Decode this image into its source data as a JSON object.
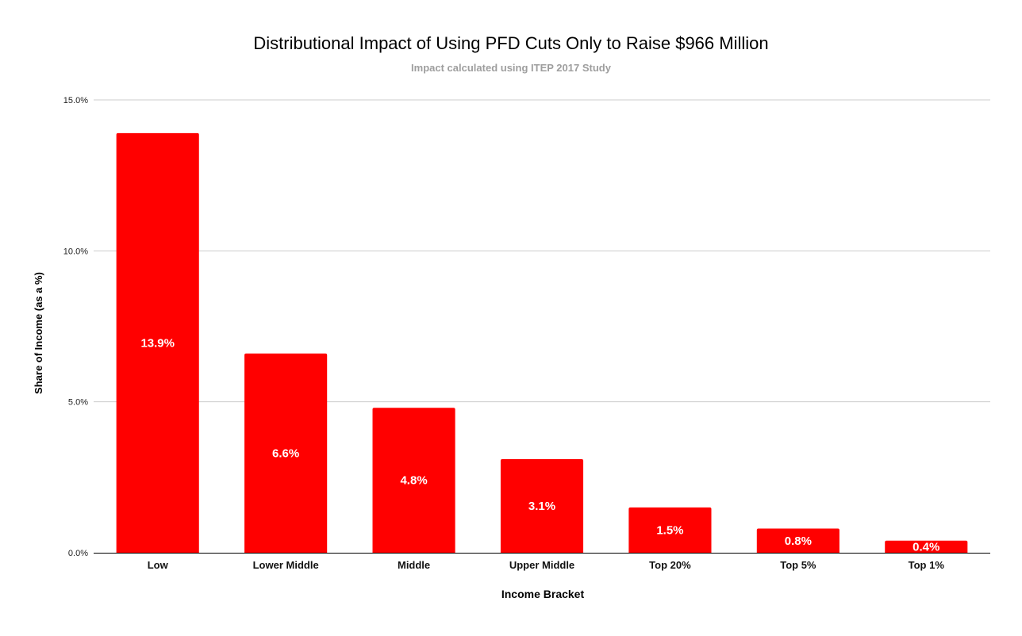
{
  "chart_data": {
    "type": "bar",
    "title": "Distributional Impact of Using PFD Cuts Only to Raise $966 Million",
    "subtitle": "Impact calculated using ITEP 2017 Study",
    "xlabel": "Income Bracket",
    "ylabel": "Share of Income (as a %)",
    "categories": [
      "Low",
      "Lower Middle",
      "Middle",
      "Upper Middle",
      "Top 20%",
      "Top 5%",
      "Top 1%"
    ],
    "values": [
      13.9,
      6.6,
      4.8,
      3.1,
      1.5,
      0.8,
      0.4
    ],
    "data_labels": [
      "13.9%",
      "6.6%",
      "4.8%",
      "3.1%",
      "1.5%",
      "0.8%",
      "0.4%"
    ],
    "ylim": [
      0,
      15
    ],
    "yticks": [
      0,
      5,
      10,
      15
    ],
    "ytick_labels": [
      "0.0%",
      "5.0%",
      "10.0%",
      "15.0%"
    ],
    "grid": true,
    "legend": "none",
    "colors": {
      "bar": "#ff0000",
      "grid": "#cccccc",
      "axis": "#000000",
      "title": "#000000",
      "subtitle": "#9e9e9e",
      "data_label": "#ffffff"
    }
  }
}
